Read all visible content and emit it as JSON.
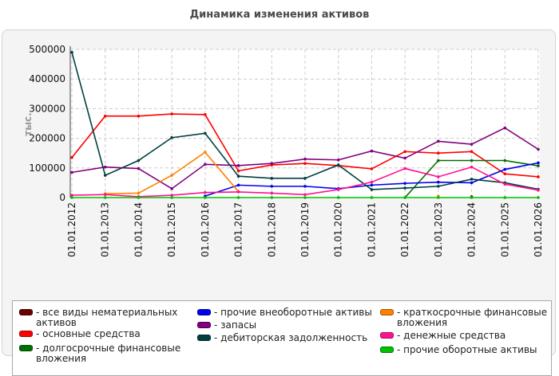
{
  "title": "Динамика изменения активов",
  "chart_data": {
    "type": "line",
    "title": "Динамика изменения активов",
    "xlabel": "",
    "ylabel": "тыс.",
    "ylim": [
      0,
      500000
    ],
    "yticks": [
      0,
      100000,
      200000,
      300000,
      400000,
      500000
    ],
    "grid": true,
    "legend_position": "bottom",
    "categories": [
      "01.01.2012",
      "01.01.2013",
      "01.01.2014",
      "01.01.2015",
      "01.01.2016",
      "01.01.2017",
      "01.01.2018",
      "01.01.2019",
      "01.01.2020",
      "01.01.2021",
      "01.01.2022",
      "01.01.2023",
      "01.01.2024",
      "01.01.2025",
      "01.01.2026"
    ],
    "series": [
      {
        "name": "- все виды нематериальных активов",
        "color": "#6b0000",
        "values": [
          null,
          null,
          null,
          null,
          null,
          null,
          null,
          null,
          null,
          null,
          null,
          null,
          3000,
          null,
          null
        ]
      },
      {
        "name": "- основные средства",
        "color": "#ff0000",
        "values": [
          135000,
          275000,
          275000,
          282000,
          280000,
          90000,
          110000,
          115000,
          108000,
          97000,
          155000,
          150000,
          155000,
          80000,
          70000
        ]
      },
      {
        "name": "- долгосрочные финансовые вложения",
        "color": "#007000",
        "values": [
          null,
          null,
          null,
          null,
          null,
          null,
          null,
          null,
          null,
          null,
          0,
          125000,
          125000,
          125000,
          107000
        ]
      },
      {
        "name": "- прочие внеоборотные активы",
        "color": "#0000ee",
        "values": [
          null,
          null,
          null,
          null,
          5000,
          42000,
          38000,
          38000,
          30000,
          42000,
          48000,
          52000,
          50000,
          95000,
          117000
        ]
      },
      {
        "name": "- запасы",
        "color": "#800080",
        "values": [
          85000,
          103000,
          98000,
          30000,
          112000,
          108000,
          115000,
          130000,
          127000,
          157000,
          133000,
          190000,
          180000,
          235000,
          163000
        ]
      },
      {
        "name": "- дебиторская задолженность",
        "color": "#004040",
        "values": [
          490000,
          75000,
          125000,
          202000,
          217000,
          72000,
          65000,
          65000,
          110000,
          27000,
          32000,
          38000,
          62000,
          50000,
          28000
        ]
      },
      {
        "name": "- краткосрочные финансовые вложения",
        "color": "#ff8000",
        "values": [
          null,
          13000,
          15000,
          75000,
          153000,
          20000,
          null,
          null,
          null,
          null,
          null,
          5000,
          null,
          null,
          null
        ]
      },
      {
        "name": "- денежные средства",
        "color": "#ff1090",
        "values": [
          8000,
          10000,
          3000,
          8000,
          17000,
          19000,
          15000,
          10000,
          27000,
          52000,
          98000,
          70000,
          103000,
          45000,
          25000
        ]
      },
      {
        "name": "- прочие оборотные активы",
        "color": "#00c000",
        "values": [
          0,
          0,
          0,
          0,
          0,
          0,
          0,
          0,
          0,
          0,
          0,
          0,
          0,
          0,
          0
        ]
      }
    ]
  }
}
